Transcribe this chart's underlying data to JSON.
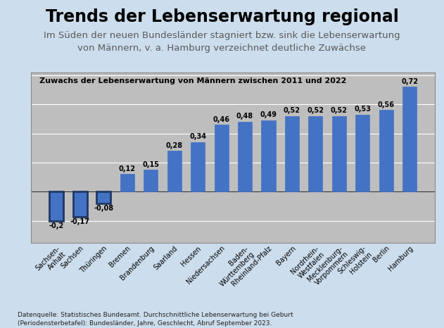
{
  "title": "Trends der Lebenserwartung regional",
  "subtitle": "Im Süden der neuen Bundesländer stagniert bzw. sink die Lebenserwartung\nvon Männern, v. a. Hamburg verzeichnet deutliche Zuwächse",
  "chart_title": "Zuwachs der Lebenserwartung von Männern zwischen 2011 und 2022",
  "footnote": "Datenquelle: Statistisches Bundesamt. Durchschnittliche Lebenserwartung bei Geburt\n(Periodensterbetafel): Bundesländer, Jahre, Geschlecht, Abruf September 2023.",
  "categories": [
    "Sachsen-\nAnhalt",
    "Sachsen",
    "Thüringen",
    "Bremen",
    "Brandenburg",
    "Saarland",
    "Hessen",
    "Niedersachsen",
    "Baden-\nWürttemberg",
    "Rheinland-Pfalz",
    "Bayern",
    "Nordrhein-\nWestfalen",
    "Mecklenburg-\nVorpommern",
    "Schleswig-\nHolstein",
    "Berlin",
    "Hamburg"
  ],
  "values": [
    -0.2,
    -0.17,
    -0.08,
    0.12,
    0.15,
    0.28,
    0.34,
    0.46,
    0.48,
    0.49,
    0.52,
    0.52,
    0.52,
    0.53,
    0.56,
    0.72
  ],
  "bar_color_positive": "#4472C4",
  "bar_color_negative": "#4472C4",
  "bar_edge_color_negative": "#1F3864",
  "bar_edge_color_positive": "#4472C4",
  "outer_bg": "#CCDDED",
  "chart_bg": "#BEBEBE",
  "chart_border": "#888888",
  "title_color": "#000000",
  "subtitle_color": "#595959",
  "ylim": [
    -0.35,
    0.82
  ],
  "title_fontsize": 17,
  "subtitle_fontsize": 9.5,
  "chart_title_fontsize": 8,
  "label_fontsize": 7,
  "tick_label_fontsize": 7,
  "footnote_fontsize": 6.5
}
